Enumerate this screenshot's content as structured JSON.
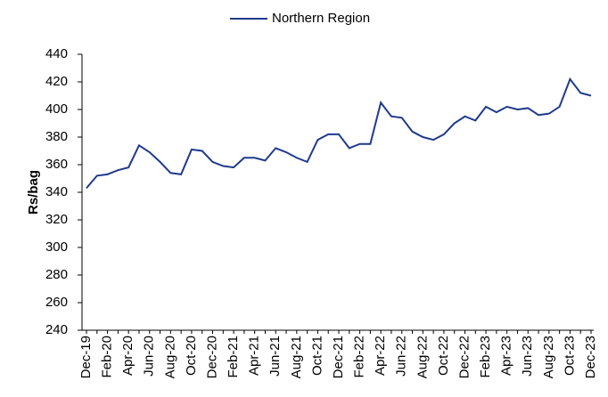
{
  "chart_data": {
    "type": "line",
    "y_label": "Rs/bag",
    "categories": [
      "Dec-19",
      null,
      "Feb-20",
      null,
      "Apr-20",
      null,
      "Jun-20",
      null,
      "Aug-20",
      null,
      "Oct-20",
      null,
      "Dec-20",
      null,
      "Feb-21",
      null,
      "Apr-21",
      null,
      "Jun-21",
      null,
      "Aug-21",
      null,
      "Oct-21",
      null,
      "Dec-21",
      null,
      "Feb-22",
      null,
      "Apr-22",
      null,
      "Jun-22",
      null,
      "Aug-22",
      null,
      "Oct-22",
      null,
      "Dec-22",
      null,
      "Feb-23",
      null,
      "Apr-23",
      null,
      "Jun-23",
      null,
      "Aug-23",
      null,
      "Oct-23",
      null,
      "Dec-23"
    ],
    "series": [
      {
        "name": "Northern Region",
        "color": "#1f3a8c",
        "values": [
          343,
          352,
          353,
          356,
          358,
          374,
          369,
          362,
          354,
          353,
          371,
          370,
          362,
          359,
          358,
          365,
          365,
          363,
          372,
          369,
          365,
          362,
          378,
          382,
          382,
          372,
          375,
          375,
          405,
          395,
          394,
          384,
          380,
          378,
          382,
          390,
          395,
          392,
          402,
          398,
          402,
          400,
          401,
          396,
          397,
          402,
          422,
          412,
          410
        ]
      }
    ],
    "ylim": [
      240,
      440
    ],
    "yticks": [
      240,
      260,
      280,
      300,
      320,
      340,
      360,
      380,
      400,
      420,
      440
    ],
    "grid": false,
    "legend": "top"
  }
}
